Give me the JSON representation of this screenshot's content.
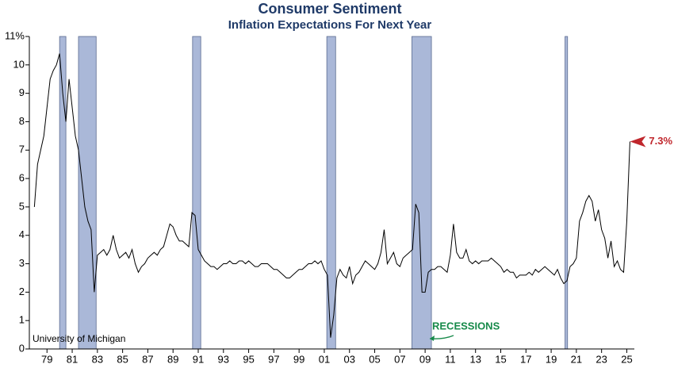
{
  "chart_data": {
    "type": "line",
    "title": "Consumer Sentiment",
    "subtitle": "Inflation Expectations For Next Year",
    "source": "University of Michigan",
    "recession_label": "RECESSIONS",
    "x": [
      1978,
      1978.25,
      1978.5,
      1978.75,
      1979,
      1979.25,
      1979.5,
      1979.75,
      1980,
      1980.25,
      1980.5,
      1980.75,
      1981,
      1981.25,
      1981.5,
      1981.75,
      1982,
      1982.25,
      1982.5,
      1982.75,
      1983,
      1983.25,
      1983.5,
      1983.75,
      1984,
      1984.25,
      1984.5,
      1984.75,
      1985,
      1985.25,
      1985.5,
      1985.75,
      1986,
      1986.25,
      1986.5,
      1986.75,
      1987,
      1987.25,
      1987.5,
      1987.75,
      1988,
      1988.25,
      1988.5,
      1988.75,
      1989,
      1989.25,
      1989.5,
      1989.75,
      1990,
      1990.25,
      1990.5,
      1990.75,
      1991,
      1991.25,
      1991.5,
      1991.75,
      1992,
      1992.25,
      1992.5,
      1992.75,
      1993,
      1993.25,
      1993.5,
      1993.75,
      1994,
      1994.25,
      1994.5,
      1994.75,
      1995,
      1995.25,
      1995.5,
      1995.75,
      1996,
      1996.25,
      1996.5,
      1996.75,
      1997,
      1997.25,
      1997.5,
      1997.75,
      1998,
      1998.25,
      1998.5,
      1998.75,
      1999,
      1999.25,
      1999.5,
      1999.75,
      2000,
      2000.25,
      2000.5,
      2000.75,
      2001,
      2001.25,
      2001.5,
      2001.75,
      2002,
      2002.25,
      2002.5,
      2002.75,
      2003,
      2003.25,
      2003.5,
      2003.75,
      2004,
      2004.25,
      2004.5,
      2004.75,
      2005,
      2005.25,
      2005.5,
      2005.75,
      2006,
      2006.25,
      2006.5,
      2006.75,
      2007,
      2007.25,
      2007.5,
      2007.75,
      2008,
      2008.25,
      2008.5,
      2008.75,
      2009,
      2009.25,
      2009.5,
      2009.75,
      2010,
      2010.25,
      2010.5,
      2010.75,
      2011,
      2011.25,
      2011.5,
      2011.75,
      2012,
      2012.25,
      2012.5,
      2012.75,
      2013,
      2013.25,
      2013.5,
      2013.75,
      2014,
      2014.25,
      2014.5,
      2014.75,
      2015,
      2015.25,
      2015.5,
      2015.75,
      2016,
      2016.25,
      2016.5,
      2016.75,
      2017,
      2017.25,
      2017.5,
      2017.75,
      2018,
      2018.25,
      2018.5,
      2018.75,
      2019,
      2019.25,
      2019.5,
      2019.75,
      2020,
      2020.25,
      2020.5,
      2020.75,
      2021,
      2021.25,
      2021.5,
      2021.75,
      2022,
      2022.25,
      2022.5,
      2022.75,
      2023,
      2023.25,
      2023.5,
      2023.75,
      2024,
      2024.25,
      2024.5,
      2024.75,
      2025,
      2025.25
    ],
    "series": [
      {
        "color": "#000000",
        "values": [
          5.0,
          6.5,
          7.0,
          7.5,
          8.5,
          9.5,
          9.8,
          10.0,
          10.4,
          9.0,
          8.0,
          9.5,
          8.5,
          7.5,
          7.0,
          6.0,
          5.0,
          4.5,
          4.2,
          2.0,
          3.3,
          3.4,
          3.5,
          3.3,
          3.5,
          4.0,
          3.5,
          3.2,
          3.3,
          3.4,
          3.2,
          3.5,
          3.0,
          2.7,
          2.9,
          3.0,
          3.2,
          3.3,
          3.4,
          3.3,
          3.5,
          3.6,
          4.0,
          4.4,
          4.3,
          4.0,
          3.8,
          3.8,
          3.7,
          3.6,
          4.8,
          4.7,
          3.5,
          3.3,
          3.1,
          3.0,
          2.9,
          2.9,
          2.8,
          2.9,
          3.0,
          3.0,
          3.1,
          3.0,
          3.0,
          3.1,
          3.1,
          3.0,
          3.1,
          3.0,
          2.9,
          2.9,
          3.0,
          3.0,
          3.0,
          2.9,
          2.8,
          2.8,
          2.7,
          2.6,
          2.5,
          2.5,
          2.6,
          2.7,
          2.8,
          2.8,
          2.9,
          3.0,
          3.0,
          3.1,
          3.0,
          3.1,
          2.8,
          2.6,
          0.4,
          1.2,
          2.5,
          2.8,
          2.6,
          2.5,
          2.9,
          2.3,
          2.6,
          2.7,
          2.9,
          3.1,
          3.0,
          2.9,
          2.8,
          3.0,
          3.4,
          4.2,
          3.0,
          3.2,
          3.4,
          3.0,
          2.9,
          3.2,
          3.3,
          3.4,
          3.5,
          5.1,
          4.8,
          2.0,
          2.0,
          2.7,
          2.8,
          2.8,
          2.9,
          2.9,
          2.8,
          2.7,
          3.3,
          4.4,
          3.4,
          3.2,
          3.2,
          3.5,
          3.1,
          3.0,
          3.1,
          3.0,
          3.1,
          3.1,
          3.1,
          3.2,
          3.1,
          3.0,
          2.9,
          2.7,
          2.8,
          2.7,
          2.7,
          2.5,
          2.6,
          2.6,
          2.6,
          2.7,
          2.6,
          2.8,
          2.7,
          2.8,
          2.9,
          2.8,
          2.7,
          2.6,
          2.8,
          2.5,
          2.3,
          2.4,
          2.9,
          3.0,
          3.2,
          4.5,
          4.8,
          5.2,
          5.4,
          5.2,
          4.5,
          4.9,
          4.2,
          3.9,
          3.2,
          3.8,
          2.9,
          3.1,
          2.8,
          2.7,
          4.5,
          7.3
        ]
      }
    ],
    "annotations": [
      {
        "x": 2025.25,
        "y": 7.3,
        "text": "7.3%",
        "color": "#c0272d"
      }
    ],
    "recessions": [
      [
        1980.0,
        1980.5
      ],
      [
        1981.5,
        1982.9
      ],
      [
        1990.55,
        1991.2
      ],
      [
        2001.2,
        2001.9
      ],
      [
        2007.95,
        2009.5
      ],
      [
        2020.1,
        2020.3
      ]
    ],
    "recession_color": "#aab8d8",
    "xlim": [
      1977.6,
      2025.6
    ],
    "ylim": [
      0,
      11
    ],
    "xticks": [
      {
        "value": 1979,
        "label": "79"
      },
      {
        "value": 1981,
        "label": "81"
      },
      {
        "value": 1983,
        "label": "83"
      },
      {
        "value": 1985,
        "label": "85"
      },
      {
        "value": 1987,
        "label": "87"
      },
      {
        "value": 1989,
        "label": "89"
      },
      {
        "value": 1991,
        "label": "91"
      },
      {
        "value": 1993,
        "label": "93"
      },
      {
        "value": 1995,
        "label": "95"
      },
      {
        "value": 1997,
        "label": "97"
      },
      {
        "value": 1999,
        "label": "99"
      },
      {
        "value": 2001,
        "label": "01"
      },
      {
        "value": 2003,
        "label": "03"
      },
      {
        "value": 2005,
        "label": "05"
      },
      {
        "value": 2007,
        "label": "07"
      },
      {
        "value": 2009,
        "label": "09"
      },
      {
        "value": 2011,
        "label": "11"
      },
      {
        "value": 2013,
        "label": "13"
      },
      {
        "value": 2015,
        "label": "15"
      },
      {
        "value": 2017,
        "label": "17"
      },
      {
        "value": 2019,
        "label": "19"
      },
      {
        "value": 2021,
        "label": "21"
      },
      {
        "value": 2023,
        "label": "23"
      },
      {
        "value": 2025,
        "label": "25"
      }
    ],
    "yticks": [
      0,
      1,
      2,
      3,
      4,
      5,
      6,
      7,
      8,
      9,
      10,
      {
        "value": 11,
        "label": "11%"
      }
    ],
    "grid": false
  }
}
